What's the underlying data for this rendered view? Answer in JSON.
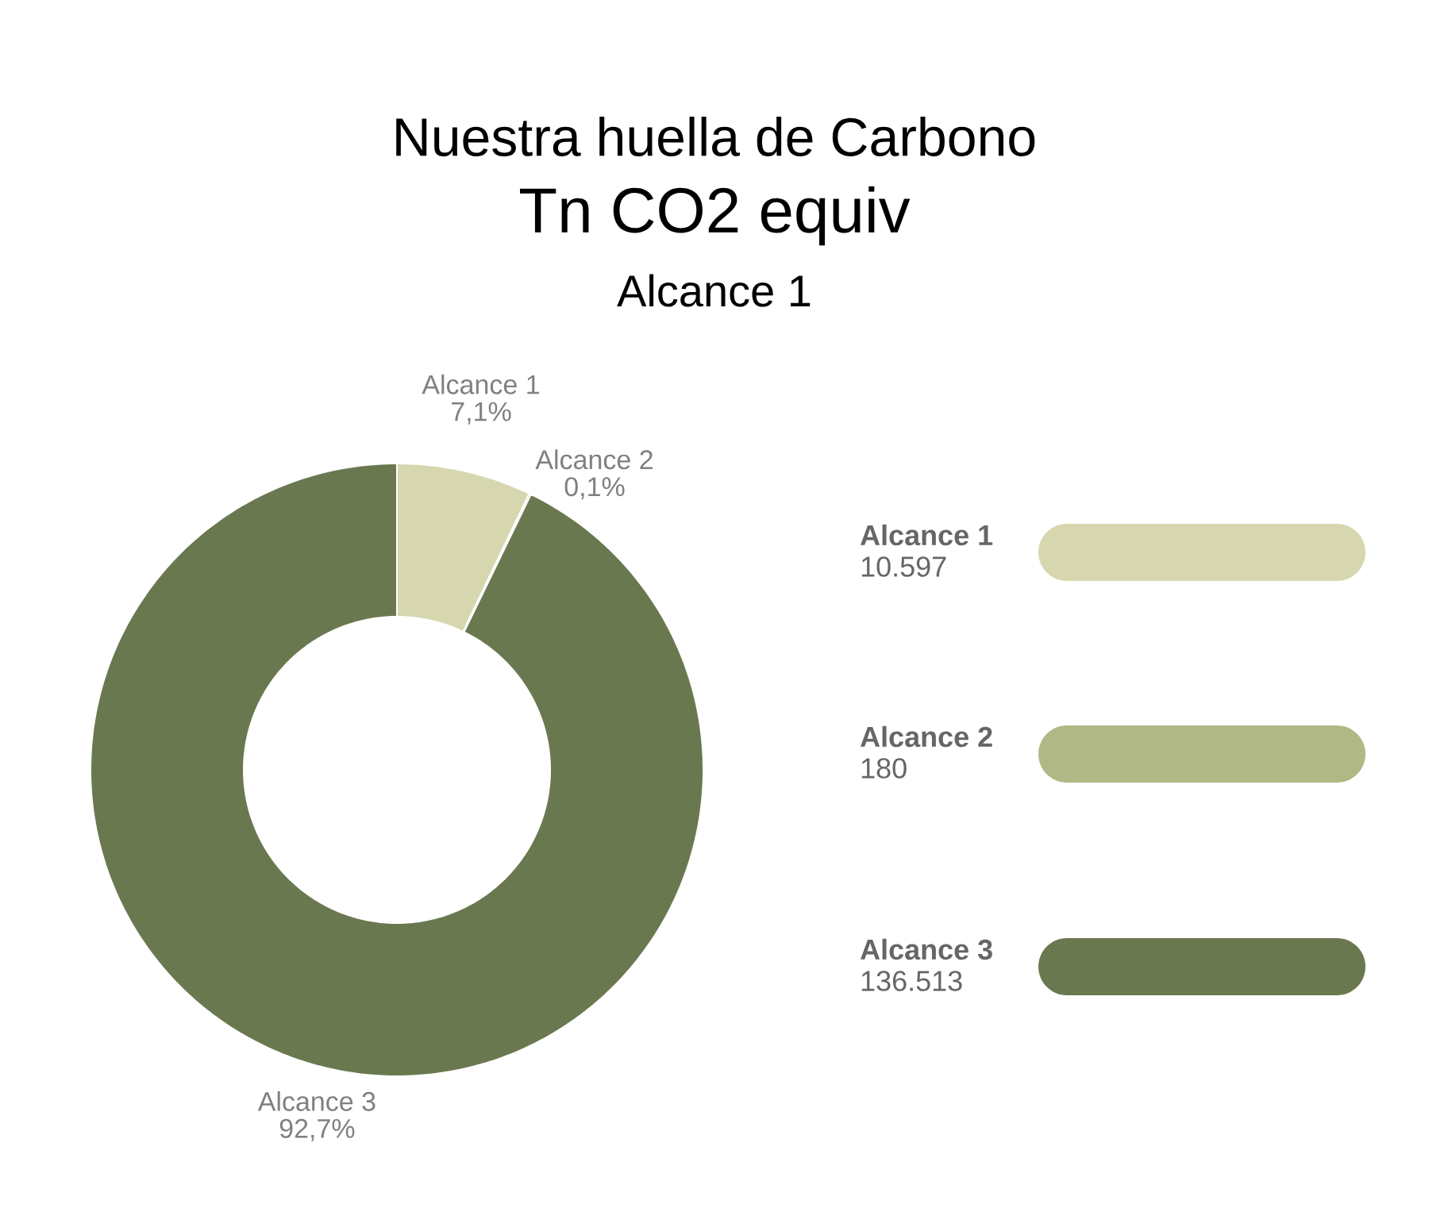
{
  "chart_data": {
    "type": "donut",
    "title": "Nuestra huella de Carbono",
    "subtitle": "Tn CO2 equiv",
    "categories": [
      "Alcance 1",
      "Alcance 2",
      "Alcance 3"
    ],
    "values": [
      7.1,
      0.1,
      92.7
    ],
    "value_labels": [
      "7,1%",
      "0,1%",
      "92,7%"
    ],
    "colors": [
      "#d6d7ae",
      "#b0b885",
      "#6a7850"
    ],
    "annotations": [
      "Alcance 1",
      "10.597",
      "180",
      "136.513"
    ]
  }
}
